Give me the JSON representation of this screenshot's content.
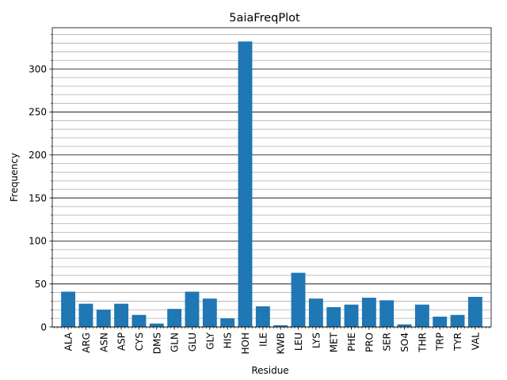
{
  "chart_data": {
    "type": "bar",
    "title": "5aiaFreqPlot",
    "xlabel": "Residue",
    "ylabel": "Frequency",
    "categories": [
      "ALA",
      "ARG",
      "ASN",
      "ASP",
      "CYS",
      "DMS",
      "GLN",
      "GLU",
      "GLY",
      "HIS",
      "HOH",
      "ILE",
      "KWB",
      "LEU",
      "LYS",
      "MET",
      "PHE",
      "PRO",
      "SER",
      "SO4",
      "THR",
      "TRP",
      "TYR",
      "VAL"
    ],
    "values": [
      41,
      27,
      20,
      27,
      14,
      4,
      21,
      41,
      33,
      10,
      332,
      24,
      2,
      63,
      33,
      23,
      26,
      34,
      31,
      3,
      26,
      12,
      14,
      35
    ],
    "ylim": [
      0,
      348
    ],
    "yticks": [
      0,
      50,
      100,
      150,
      200,
      250,
      300
    ],
    "y_minor_step": 10,
    "grid": "major and minor horizontal",
    "bar_color": "#1f77b4",
    "major_grid_color": "#000000",
    "minor_grid_color": "#b0b0b0"
  }
}
